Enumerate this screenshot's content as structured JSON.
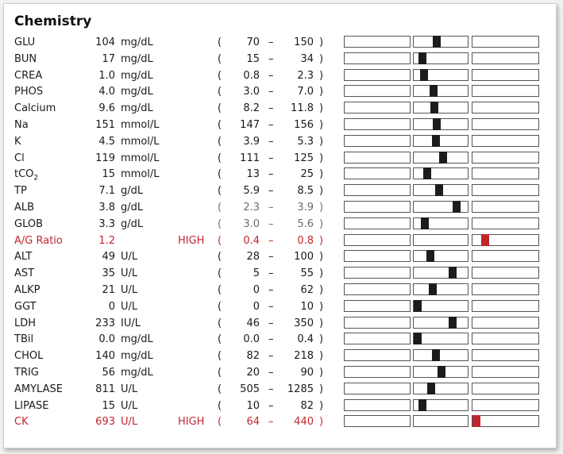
{
  "title": "Chemistry",
  "colors": {
    "normal_text": "#1a1a1a",
    "high_text": "#c0262d",
    "marker_normal": "#1c1c1c",
    "marker_high": "#c0262d"
  },
  "rows": [
    {
      "name": "GLU",
      "value": "104",
      "unit": "mg/dL",
      "flag": "",
      "low": "70",
      "high": "150",
      "position": 0.42
    },
    {
      "name": "BUN",
      "value": "17",
      "unit": "mg/dL",
      "flag": "",
      "low": "15",
      "high": "34",
      "position": 0.1
    },
    {
      "name": "CREA",
      "value": "1.0",
      "unit": "mg/dL",
      "flag": "",
      "low": "0.8",
      "high": "2.3",
      "position": 0.13
    },
    {
      "name": "PHOS",
      "value": "4.0",
      "unit": "mg/dL",
      "flag": "",
      "low": "3.0",
      "high": "7.0",
      "position": 0.35
    },
    {
      "name": "Calcium",
      "value": "9.6",
      "unit": "mg/dL",
      "flag": "",
      "low": "8.2",
      "high": "11.8",
      "position": 0.37
    },
    {
      "name": "Na",
      "value": "151",
      "unit": "mmol/L",
      "flag": "",
      "low": "147",
      "high": "156",
      "position": 0.42
    },
    {
      "name": "K",
      "value": "4.5",
      "unit": "mmol/L",
      "flag": "",
      "low": "3.9",
      "high": "5.3",
      "position": 0.4
    },
    {
      "name": "Cl",
      "value": "119",
      "unit": "mmol/L",
      "flag": "",
      "low": "111",
      "high": "125",
      "position": 0.55
    },
    {
      "name": "tCO",
      "tco_sub": "2",
      "value": "15",
      "unit": "mmol/L",
      "flag": "",
      "low": "13",
      "high": "25",
      "position": 0.2
    },
    {
      "name": "TP",
      "value": "7.1",
      "unit": "g/dL",
      "flag": "",
      "low": "5.9",
      "high": "8.5",
      "position": 0.46
    },
    {
      "name": "ALB",
      "value": "3.8",
      "unit": "g/dL",
      "flag": "",
      "low": "2.3",
      "high": "3.9",
      "position": 0.85,
      "faint": true
    },
    {
      "name": "GLOB",
      "value": "3.3",
      "unit": "g/dL",
      "flag": "",
      "low": "3.0",
      "high": "5.6",
      "position": 0.16,
      "faint": true
    },
    {
      "name": "A/G Ratio",
      "value": "1.2",
      "unit": "",
      "flag": "HIGH",
      "low": "0.4",
      "high": "0.8",
      "position": 1.15,
      "alert": true,
      "faint": true
    },
    {
      "name": "ALT",
      "value": "49",
      "unit": "U/L",
      "flag": "",
      "low": "28",
      "high": "100",
      "position": 0.27
    },
    {
      "name": "AST",
      "value": "35",
      "unit": "U/L",
      "flag": "",
      "low": "5",
      "high": "55",
      "position": 0.75
    },
    {
      "name": "ALKP",
      "value": "21",
      "unit": "U/L",
      "flag": "",
      "low": "0",
      "high": "62",
      "position": 0.33
    },
    {
      "name": "GGT",
      "value": "0",
      "unit": "U/L",
      "flag": "",
      "low": "0",
      "high": "10",
      "position": 0.0
    },
    {
      "name": "LDH",
      "value": "233",
      "unit": "IU/L",
      "flag": "",
      "low": "46",
      "high": "350",
      "position": 0.76
    },
    {
      "name": "TBil",
      "value": "0.0",
      "unit": "mg/dL",
      "flag": "",
      "low": "0.0",
      "high": "0.4",
      "position": 0.0
    },
    {
      "name": "CHOL",
      "value": "140",
      "unit": "mg/dL",
      "flag": "",
      "low": "82",
      "high": "218",
      "position": 0.4
    },
    {
      "name": "TRIG",
      "value": "56",
      "unit": "mg/dL",
      "flag": "",
      "low": "20",
      "high": "90",
      "position": 0.51
    },
    {
      "name": "AMYLASE",
      "value": "811",
      "unit": "U/L",
      "flag": "",
      "low": "505",
      "high": "1285",
      "position": 0.3
    },
    {
      "name": "LIPASE",
      "value": "15",
      "unit": "U/L",
      "flag": "",
      "low": "10",
      "high": "82",
      "position": 0.1
    },
    {
      "name": "CK",
      "value": "693",
      "unit": "U/L",
      "flag": "HIGH",
      "low": "64",
      "high": "440",
      "position": 1.0,
      "alert": true
    }
  ]
}
